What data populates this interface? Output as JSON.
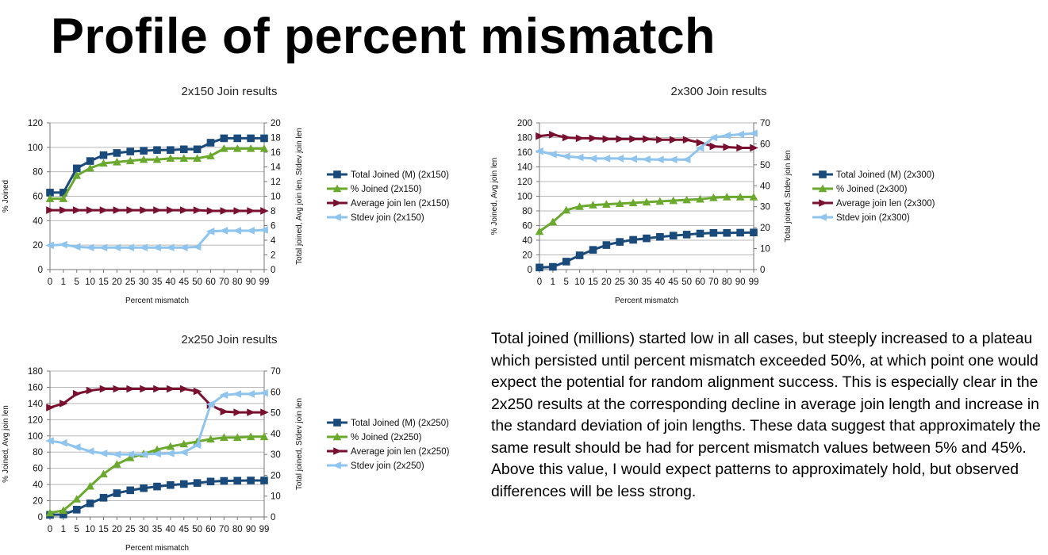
{
  "title": "Profile of percent mismatch",
  "summary_text": "Total joined (millions) started low in all cases, but steeply increased to a plateau which persisted until percent mismatch exceeded 50%, at which point one would expect the potential for random alignment success.  This is especially clear in the 2x250 results at the corresponding decline in average join length and increase in the standard deviation of join lengths.  These data suggest that approximately the same result should be had for percent mismatch values between 5% and 45%.  Above this value, I would expect patterns to approximately hold, but observed differences will be less strong.",
  "colors": {
    "total_joined": "#1a4a7a",
    "pct_joined": "#6aa82e",
    "avg_join_len": "#7a1030",
    "stdev_join": "#8ec4ee",
    "grid": "#b8b8b8",
    "axis": "#777777"
  },
  "chart_data": [
    {
      "type": "line",
      "title": "2x150 Join results",
      "xlabel": "Percent mismatch",
      "ylabel": "% Joined",
      "y2label": "Total joined, Avg join len, Stdev join len",
      "ylim": [
        0,
        120
      ],
      "yticks": [
        0,
        20,
        40,
        60,
        80,
        100,
        120
      ],
      "y2lim": [
        0,
        20
      ],
      "y2ticks": [
        0,
        2,
        4,
        6,
        8,
        10,
        12,
        14,
        16,
        18,
        20
      ],
      "grid": true,
      "legend": "right",
      "categories": [
        "0",
        "1",
        "5",
        "10",
        "15",
        "20",
        "25",
        "30",
        "35",
        "40",
        "45",
        "50",
        "60",
        "70",
        "80",
        "90",
        "99"
      ],
      "series": [
        {
          "name": "Total Joined (M) (2x150)",
          "axis": "right",
          "marker": "square",
          "color_key": "total_joined",
          "values": [
            10.5,
            10.5,
            13.8,
            14.8,
            15.6,
            15.9,
            16.1,
            16.2,
            16.3,
            16.3,
            16.4,
            16.4,
            17.3,
            17.9,
            17.9,
            17.9,
            17.9
          ]
        },
        {
          "name": "% Joined (2x150)",
          "axis": "left",
          "marker": "triangle",
          "color_key": "pct_joined",
          "values": [
            58,
            58,
            77,
            83,
            87,
            88,
            89,
            90,
            90,
            91,
            91,
            91,
            93,
            99,
            99,
            99,
            99
          ]
        },
        {
          "name": "Average join len (2x150)",
          "axis": "right",
          "marker": "arrow",
          "color_key": "avg_join_len",
          "values": [
            8.1,
            8.1,
            8.1,
            8.1,
            8.1,
            8.1,
            8.1,
            8.1,
            8.1,
            8.1,
            8.1,
            8.1,
            8.0,
            8.0,
            8.0,
            8.0,
            8.0
          ]
        },
        {
          "name": "Stdev join (2x150)",
          "axis": "right",
          "marker": "arrowleft",
          "color_key": "stdev_join",
          "values": [
            3.3,
            3.4,
            3.1,
            3.0,
            3.0,
            3.0,
            3.0,
            3.0,
            3.0,
            3.0,
            3.0,
            3.1,
            5.2,
            5.3,
            5.3,
            5.3,
            5.4
          ]
        }
      ]
    },
    {
      "type": "line",
      "title": "2x300 Join results",
      "xlabel": "Percent mismatch",
      "ylabel": "% Joined, Avg join len",
      "y2label": "Total joined, Stdev join len",
      "ylim": [
        0,
        200
      ],
      "yticks": [
        0,
        20,
        40,
        60,
        80,
        100,
        120,
        140,
        160,
        180,
        200
      ],
      "y2lim": [
        0,
        70
      ],
      "y2ticks": [
        0,
        10,
        20,
        30,
        40,
        50,
        60,
        70
      ],
      "grid": true,
      "legend": "right",
      "categories": [
        "0",
        "1",
        "5",
        "10",
        "15",
        "20",
        "25",
        "30",
        "35",
        "40",
        "45",
        "50",
        "60",
        "70",
        "80",
        "90",
        "99"
      ],
      "series": [
        {
          "name": "Total Joined (M) (2x300)",
          "axis": "right",
          "marker": "square",
          "color_key": "total_joined",
          "values": [
            1,
            1.3,
            3.8,
            6.8,
            9.4,
            11.7,
            13.2,
            14.2,
            14.9,
            15.6,
            16.2,
            16.7,
            17.2,
            17.5,
            17.5,
            17.6,
            17.7
          ]
        },
        {
          "name": "% Joined (2x300)",
          "axis": "left",
          "marker": "triangle",
          "color_key": "pct_joined",
          "values": [
            52,
            65,
            81,
            86,
            88,
            89,
            90,
            91,
            92,
            93,
            94,
            95,
            96,
            98,
            99,
            99,
            99
          ]
        },
        {
          "name": "Average join len (2x300)",
          "axis": "left",
          "marker": "arrow",
          "color_key": "avg_join_len",
          "values": [
            182,
            184,
            180,
            179,
            179,
            178,
            178,
            178,
            178,
            177,
            177,
            177,
            173,
            168,
            167,
            166,
            166
          ]
        },
        {
          "name": "Stdev join (2x300)",
          "axis": "right",
          "marker": "arrowleft",
          "color_key": "stdev_join",
          "values": [
            56.5,
            55,
            54,
            53.5,
            53,
            53,
            53,
            52.8,
            52.6,
            52.5,
            52.5,
            52.5,
            58,
            63,
            64,
            64.5,
            65
          ]
        }
      ]
    },
    {
      "type": "line",
      "title": "2x250 Join results",
      "xlabel": "Percent mismatch",
      "ylabel": "% Joined, Avg join len",
      "y2label": "Total joined, Stdev join len",
      "ylim": [
        0,
        180
      ],
      "yticks": [
        0,
        20,
        40,
        60,
        80,
        100,
        120,
        140,
        160,
        180
      ],
      "y2lim": [
        0,
        70
      ],
      "y2ticks": [
        0,
        10,
        20,
        30,
        40,
        50,
        60,
        70
      ],
      "grid": true,
      "legend": "right",
      "categories": [
        "0",
        "1",
        "5",
        "10",
        "15",
        "20",
        "25",
        "30",
        "35",
        "40",
        "45",
        "50",
        "60",
        "70",
        "80",
        "90",
        "99"
      ],
      "series": [
        {
          "name": "Total Joined (M) (2x250)",
          "axis": "right",
          "marker": "square",
          "color_key": "total_joined",
          "values": [
            1,
            1.2,
            3.5,
            6.5,
            9.2,
            11.4,
            12.8,
            13.8,
            14.6,
            15.3,
            15.8,
            16.3,
            17.0,
            17.3,
            17.4,
            17.5,
            17.5
          ]
        },
        {
          "name": "% Joined (2x250)",
          "axis": "left",
          "marker": "triangle",
          "color_key": "pct_joined",
          "values": [
            5,
            8,
            22,
            38,
            53,
            65,
            73,
            78,
            83,
            87,
            90,
            93,
            96,
            98,
            98,
            99,
            99
          ]
        },
        {
          "name": "Average join len (2x250)",
          "axis": "left",
          "marker": "arrow",
          "color_key": "avg_join_len",
          "values": [
            135,
            140,
            152,
            156,
            158,
            158,
            158,
            158,
            158,
            158,
            158,
            155,
            138,
            130,
            129,
            129,
            129
          ]
        },
        {
          "name": "Stdev join (2x250)",
          "axis": "right",
          "marker": "arrowleft",
          "color_key": "stdev_join",
          "values": [
            36.5,
            35.5,
            33.5,
            31.5,
            30.5,
            30,
            30,
            30,
            30.3,
            30.5,
            31,
            34.5,
            54,
            58.5,
            59,
            59,
            59.5
          ]
        }
      ]
    }
  ]
}
